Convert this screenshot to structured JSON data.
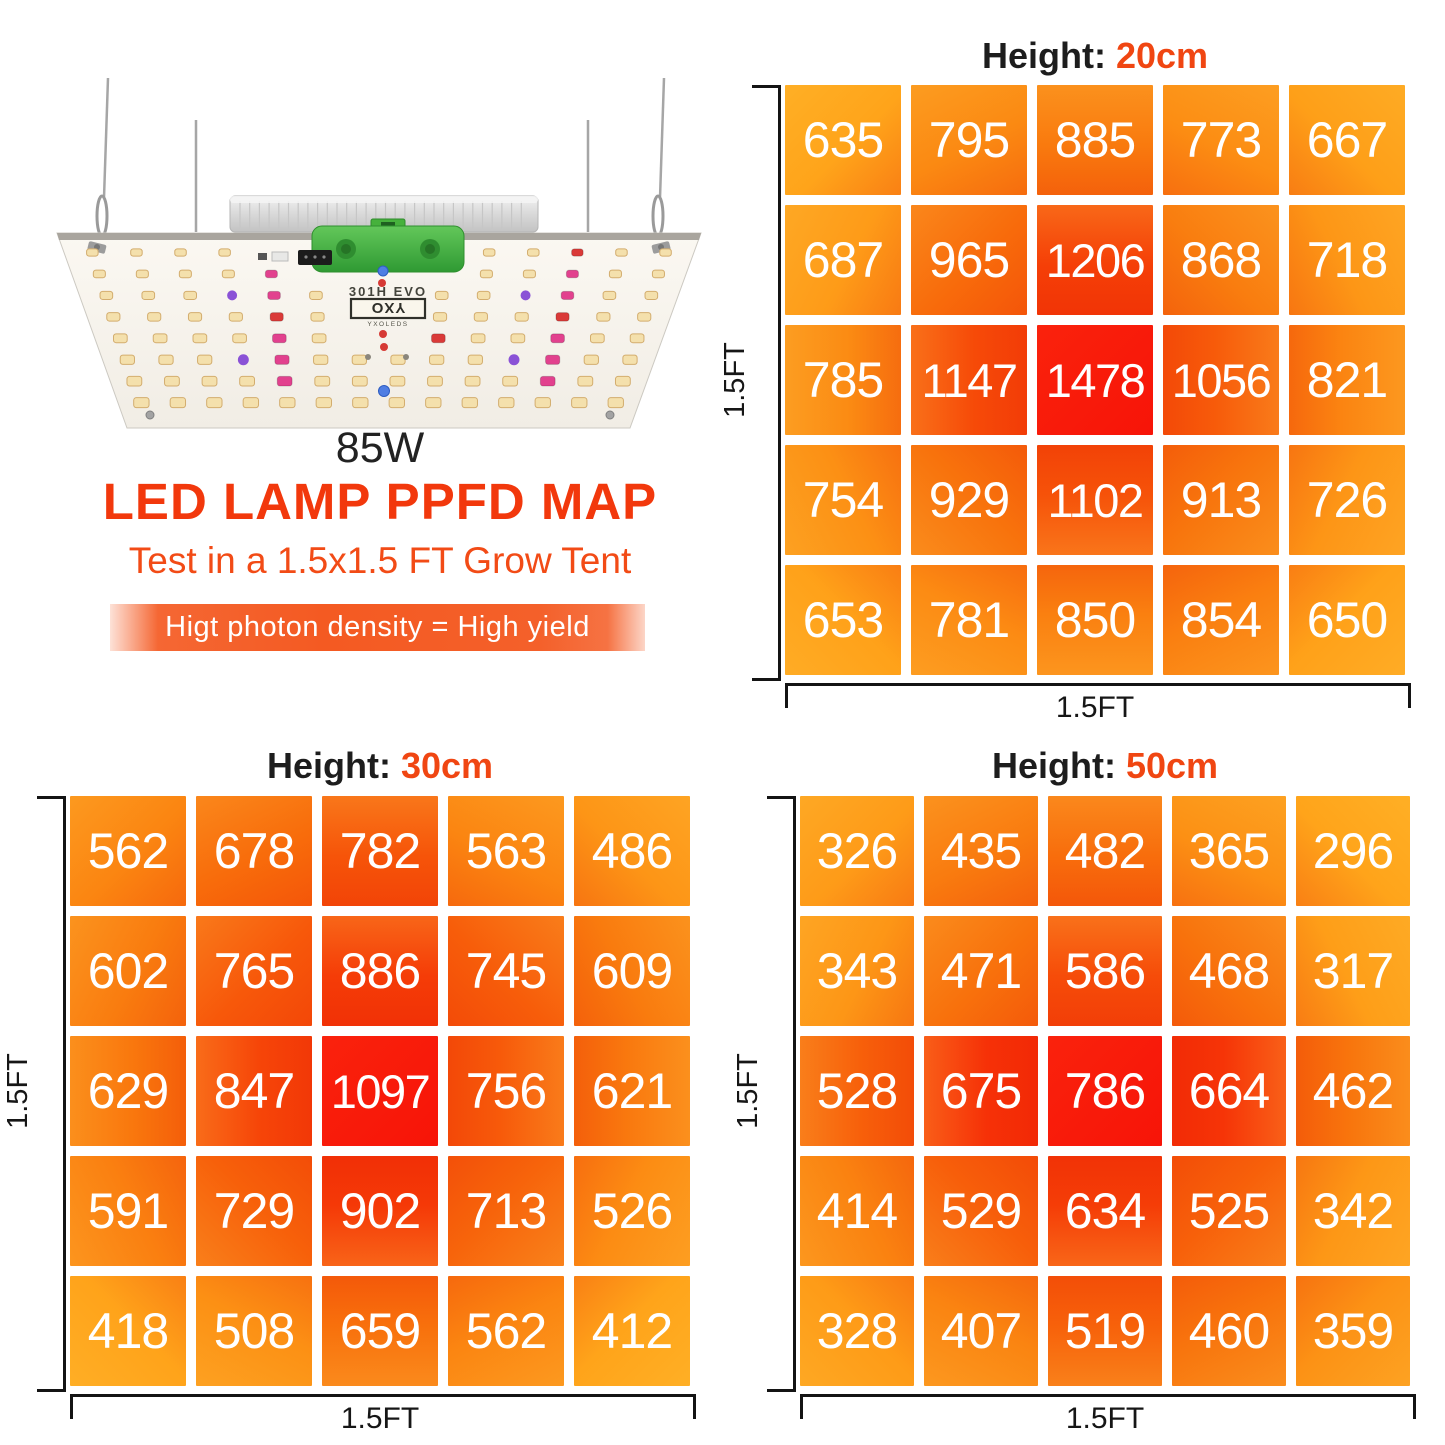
{
  "product": {
    "wattage": "85W",
    "heading": "LED LAMP PPFD MAP",
    "subheading": "Test in a 1.5x1.5 FT Grow Tent",
    "banner": "Higt photon density = High yield",
    "panel_model": "301H EVO",
    "panel_logo": "YXO",
    "panel_logo_sub": "YXOLEDS"
  },
  "labels": {
    "height_prefix": "Height:",
    "axis_width": "1.5FT",
    "axis_depth": "1.5FT"
  },
  "colors": {
    "heading": "#f2380c",
    "subheading": "#f24b16",
    "height_value": "#f04612",
    "title_text": "#1d1d1d",
    "banner_bg": "#f45a22",
    "banner_text": "#ffffff",
    "cell_low": "#ffa41a",
    "cell_mid": "#f8720c",
    "cell_high": "#f91408",
    "axis_line": "#141414",
    "bracket_green": "#3fae3e"
  },
  "chart_data": [
    {
      "type": "heatmap",
      "name": "ppfd-map-20cm",
      "height_label": "20cm",
      "xlabel": "1.5FT",
      "ylabel": "1.5FT",
      "rows": 5,
      "cols": 5,
      "values": [
        [
          635,
          795,
          885,
          773,
          667
        ],
        [
          687,
          965,
          1206,
          868,
          718
        ],
        [
          785,
          1147,
          1478,
          1056,
          821
        ],
        [
          754,
          929,
          1102,
          913,
          726
        ],
        [
          653,
          781,
          850,
          854,
          650
        ]
      ]
    },
    {
      "type": "heatmap",
      "name": "ppfd-map-30cm",
      "height_label": "30cm",
      "xlabel": "1.5FT",
      "ylabel": "1.5FT",
      "rows": 5,
      "cols": 5,
      "values": [
        [
          562,
          678,
          782,
          563,
          486
        ],
        [
          602,
          765,
          886,
          745,
          609
        ],
        [
          629,
          847,
          1097,
          756,
          621
        ],
        [
          591,
          729,
          902,
          713,
          526
        ],
        [
          418,
          508,
          659,
          562,
          412
        ]
      ]
    },
    {
      "type": "heatmap",
      "name": "ppfd-map-50cm",
      "height_label": "50cm",
      "xlabel": "1.5FT",
      "ylabel": "1.5FT",
      "rows": 5,
      "cols": 5,
      "values": [
        [
          326,
          435,
          482,
          365,
          296
        ],
        [
          343,
          471,
          586,
          468,
          317
        ],
        [
          528,
          675,
          786,
          664,
          462
        ],
        [
          414,
          529,
          634,
          525,
          342
        ],
        [
          328,
          407,
          519,
          460,
          359
        ]
      ]
    }
  ]
}
